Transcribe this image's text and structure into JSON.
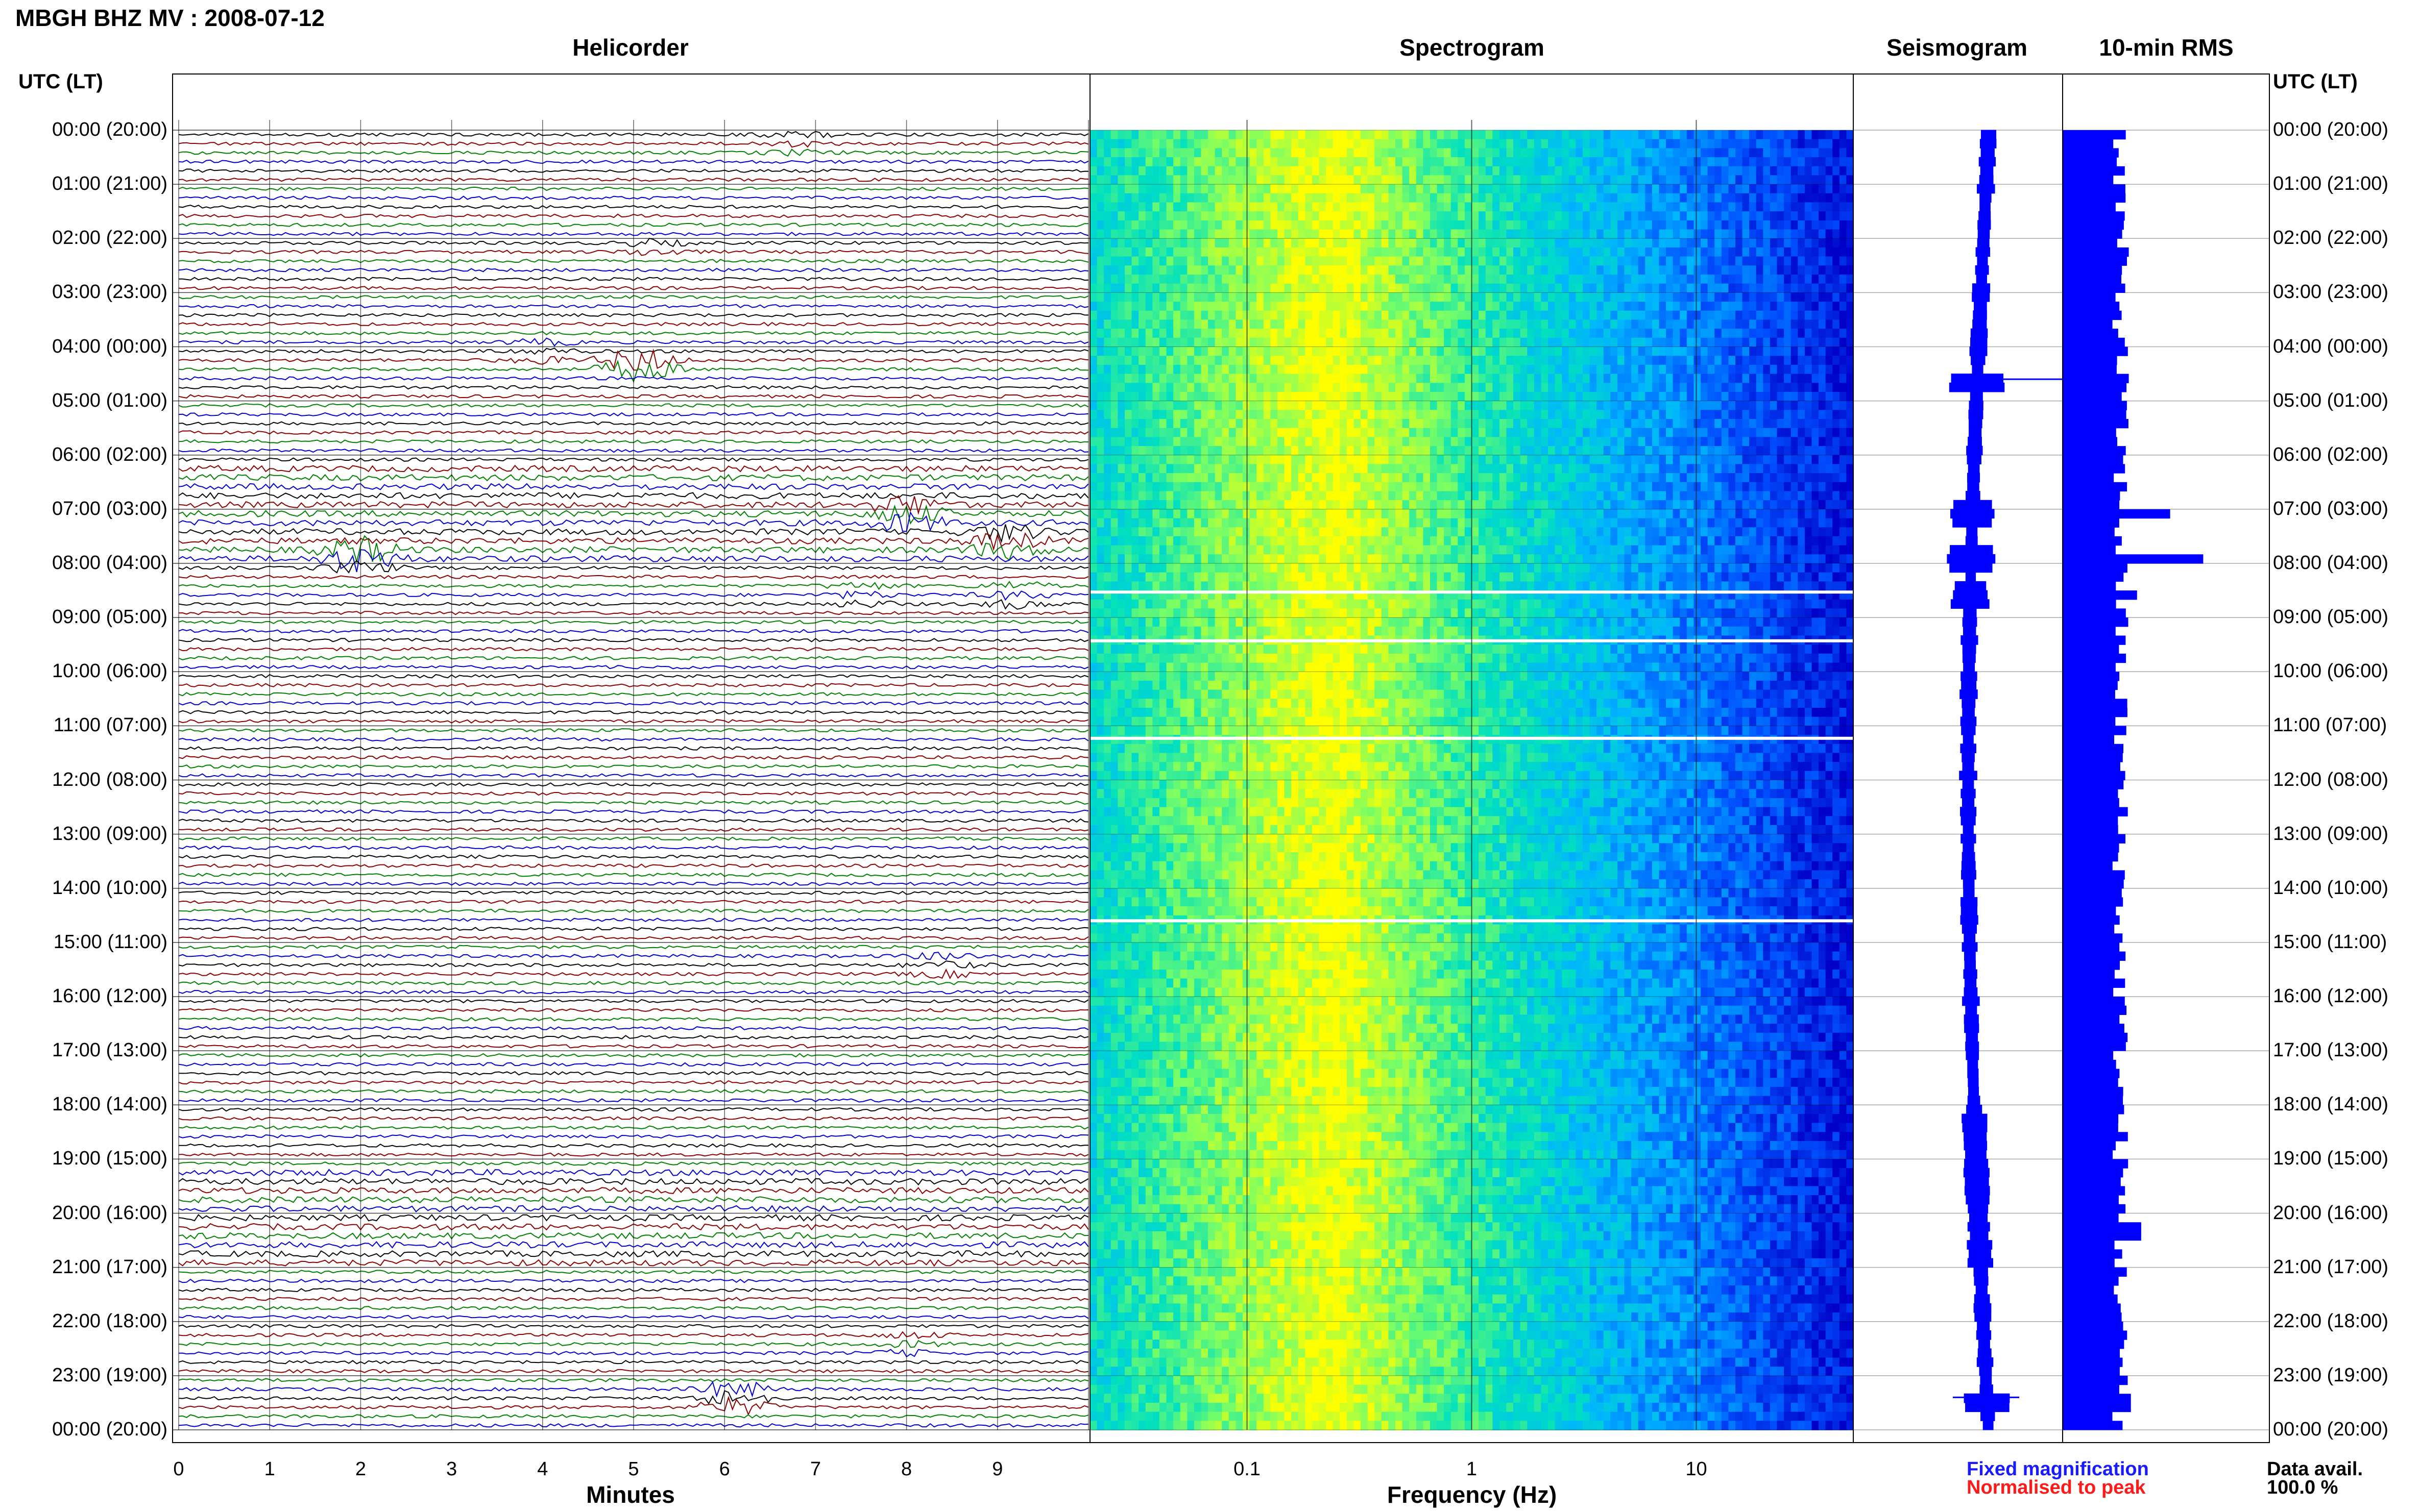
{
  "page": {
    "title": "MBGH BHZ MV : 2008-07-12"
  },
  "panels": {
    "helicorder": "Helicorder",
    "spectrogram": "Spectrogram",
    "seismogram": "Seismogram",
    "rms": "10-min RMS"
  },
  "axis": {
    "utc_header_left": "UTC (LT)",
    "utc_header_right": "UTC (LT)",
    "minutes_title": "Minutes",
    "frequency_title": "Frequency (Hz)",
    "minutes_ticks": [
      "0",
      "1",
      "2",
      "3",
      "4",
      "5",
      "6",
      "7",
      "8",
      "9"
    ],
    "frequency_ticks": [
      "0.1",
      "1",
      "10"
    ]
  },
  "hours": [
    "00:00 (20:00)",
    "01:00 (21:00)",
    "02:00 (22:00)",
    "03:00 (23:00)",
    "04:00 (00:00)",
    "05:00 (01:00)",
    "06:00 (02:00)",
    "07:00 (03:00)",
    "08:00 (04:00)",
    "09:00 (05:00)",
    "10:00 (06:00)",
    "11:00 (07:00)",
    "12:00 (08:00)",
    "13:00 (09:00)",
    "14:00 (10:00)",
    "15:00 (11:00)",
    "16:00 (12:00)",
    "17:00 (13:00)",
    "18:00 (14:00)",
    "19:00 (15:00)",
    "20:00 (16:00)",
    "21:00 (17:00)",
    "22:00 (18:00)",
    "23:00 (19:00)",
    "00:00 (20:00)"
  ],
  "legend": {
    "fixed": "Fixed magnification",
    "normalised": "Normalised to peak",
    "fixed_color": "#1a1aff",
    "normalised_color": "#ff1a1a"
  },
  "availability": {
    "label": "Data avail.",
    "value": "100.0 %"
  },
  "chart_data": {
    "type": "heatmap",
    "helicorder": {
      "lines_per_hour": 6,
      "minutes_per_line": 10,
      "trace_colors": [
        "#000000",
        "#8b0000",
        "#008000",
        "#0000cd"
      ],
      "events": [
        {
          "hour": 0.17,
          "minute": 6.8,
          "amp": 0.6
        },
        {
          "hour": 2.1,
          "minute": 5.2,
          "amp": 0.8
        },
        {
          "hour": 4.0,
          "minute": 4.0,
          "amp": 0.7
        },
        {
          "hour": 4.3,
          "minute": 5.05,
          "amp": 3.0
        },
        {
          "hour": 7.0,
          "minute": 8.0,
          "amp": 1.2
        },
        {
          "hour": 7.5,
          "minute": 9.1,
          "amp": 1.0
        },
        {
          "hour": 7.83,
          "minute": 2.0,
          "amp": 1.6
        },
        {
          "hour": 8.5,
          "minute": 7.5,
          "amp": 0.8
        },
        {
          "hour": 8.5,
          "minute": 9.2,
          "amp": 1.0
        },
        {
          "hour": 15.3,
          "minute": 8.4,
          "amp": 0.8
        },
        {
          "hour": 22.3,
          "minute": 8.0,
          "amp": 0.7
        },
        {
          "hour": 23.3,
          "minute": 6.1,
          "amp": 2.2
        }
      ],
      "noisy_hours": [
        7,
        20
      ]
    },
    "spectrogram": {
      "freq_min": 0.02,
      "freq_max": 50,
      "peak_freq": 0.25,
      "gap_hours": [
        8.53,
        9.43,
        11.23,
        14.6
      ],
      "colormap": [
        "#0000c8",
        "#0050ff",
        "#00b4ff",
        "#00e0c0",
        "#80ff60",
        "#ffff00"
      ]
    },
    "seismogram": {
      "rows": 144,
      "events": [
        {
          "hour": 4.6,
          "width": 2.0
        },
        {
          "hour": 7.0,
          "width": 1.3
        },
        {
          "hour": 7.83,
          "width": 1.6
        },
        {
          "hour": 8.5,
          "width": 1.0
        },
        {
          "hour": 23.4,
          "width": 1.5
        }
      ],
      "color": "#0000ff"
    },
    "rms": {
      "bin_minutes": 10,
      "xlim": [
        0,
        100
      ],
      "baseline": 28,
      "peaks": [
        {
          "hour": 4.5,
          "value": 32
        },
        {
          "hour": 7.0,
          "value": 52
        },
        {
          "hour": 7.83,
          "value": 68
        },
        {
          "hour": 8.5,
          "value": 36
        },
        {
          "hour": 20.2,
          "value": 38
        },
        {
          "hour": 23.4,
          "value": 33
        }
      ],
      "color": "#0000ff"
    }
  }
}
